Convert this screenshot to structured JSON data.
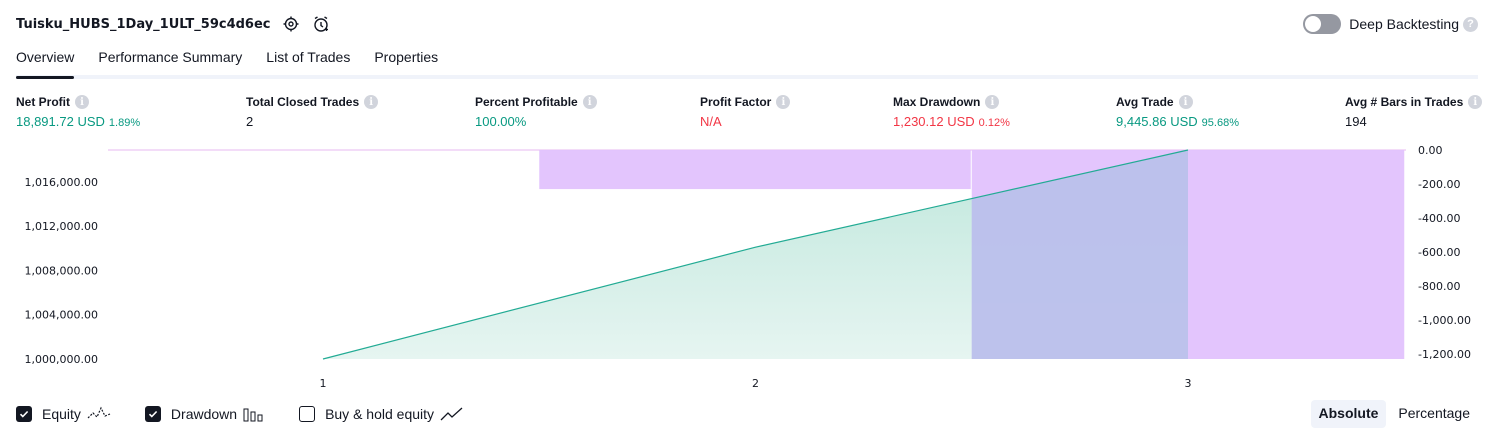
{
  "header": {
    "strategy_name": "Tuisku_HUBS_1Day_1ULT_59c4d6ec",
    "deep_backtesting_label": "Deep Backtesting",
    "deep_backtesting_enabled": false
  },
  "tabs": [
    {
      "label": "Overview",
      "active": true
    },
    {
      "label": "Performance Summary",
      "active": false
    },
    {
      "label": "List of Trades",
      "active": false
    },
    {
      "label": "Properties",
      "active": false
    }
  ],
  "metrics": {
    "net_profit": {
      "label": "Net Profit",
      "value": "18,891.72 USD",
      "pct": "1.89%"
    },
    "total_closed_trades": {
      "label": "Total Closed Trades",
      "value": "2"
    },
    "percent_profitable": {
      "label": "Percent Profitable",
      "value": "100.00%"
    },
    "profit_factor": {
      "label": "Profit Factor",
      "value": "N/A"
    },
    "max_drawdown": {
      "label": "Max Drawdown",
      "value": "1,230.12 USD",
      "pct": "0.12%"
    },
    "avg_trade": {
      "label": "Avg Trade",
      "value": "9,445.86 USD",
      "pct": "95.68%"
    },
    "avg_bars": {
      "label": "Avg # Bars in Trades",
      "value": "194"
    }
  },
  "chart_data": {
    "type": "area",
    "x": [
      1,
      2,
      3
    ],
    "x_ticks": [
      "1",
      "2",
      "3"
    ],
    "series": [
      {
        "name": "Equity",
        "values": [
          1000000.0,
          1010108.0,
          1018891.72
        ]
      }
    ],
    "drawdown_bars": [
      {
        "from": 1.5,
        "to": 2.5,
        "value": -230
      },
      {
        "from": 2.5,
        "to": 3.5,
        "value": -1230.12
      }
    ],
    "left_axis": {
      "ticks": [
        "1,000,000.00",
        "1,004,000.00",
        "1,008,000.00",
        "1,012,000.00",
        "1,016,000.00"
      ],
      "ylim": [
        1000000,
        1018891.72
      ]
    },
    "right_axis": {
      "ticks": [
        "0.00",
        "-200.00",
        "-400.00",
        "-600.00",
        "-800.00",
        "-1,000.00",
        "-1,200.00"
      ],
      "ylim": [
        -1230.12,
        0
      ]
    },
    "colors": {
      "equity_line": "#22ab94",
      "equity_fill": "#c9ebe3",
      "drawdown": "#e1c2fd"
    }
  },
  "legend": {
    "equity": {
      "label": "Equity",
      "checked": true
    },
    "drawdown": {
      "label": "Drawdown",
      "checked": true
    },
    "buy_hold": {
      "label": "Buy & hold equity",
      "checked": false
    }
  },
  "mode": {
    "absolute_label": "Absolute",
    "percentage_label": "Percentage",
    "selected": "Absolute"
  }
}
